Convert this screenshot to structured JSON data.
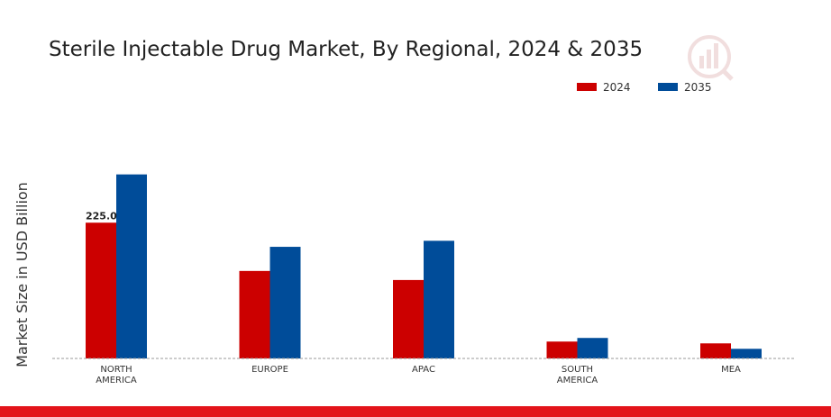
{
  "chart_data": {
    "type": "bar",
    "title": "Sterile Injectable Drug Market, By Regional, 2024 & 2035",
    "ylabel": "Market Size in USD Billion",
    "xlabel": "",
    "categories": [
      "NORTH AMERICA",
      "EUROPE",
      "APAC",
      "SOUTH AMERICA",
      "MEA"
    ],
    "category_lines": [
      [
        "NORTH",
        "AMERICA"
      ],
      [
        "EUROPE"
      ],
      [
        "APAC"
      ],
      [
        "SOUTH",
        "AMERICA"
      ],
      [
        "MEA"
      ]
    ],
    "series": [
      {
        "name": "2024",
        "color": "#cc0000",
        "values": [
          225.0,
          145.0,
          130.0,
          28.0,
          25.0
        ]
      },
      {
        "name": "2035",
        "color": "#004c99",
        "values": [
          305.0,
          185.0,
          195.0,
          34.0,
          16.0
        ]
      }
    ],
    "data_labels": [
      {
        "series": 0,
        "index": 0,
        "text": "225.0"
      }
    ],
    "ylim": [
      0,
      400
    ],
    "grid": false,
    "legend_position": "top-right"
  },
  "colors": {
    "accent_bar": "#e3141a",
    "baseline": "#999999"
  }
}
